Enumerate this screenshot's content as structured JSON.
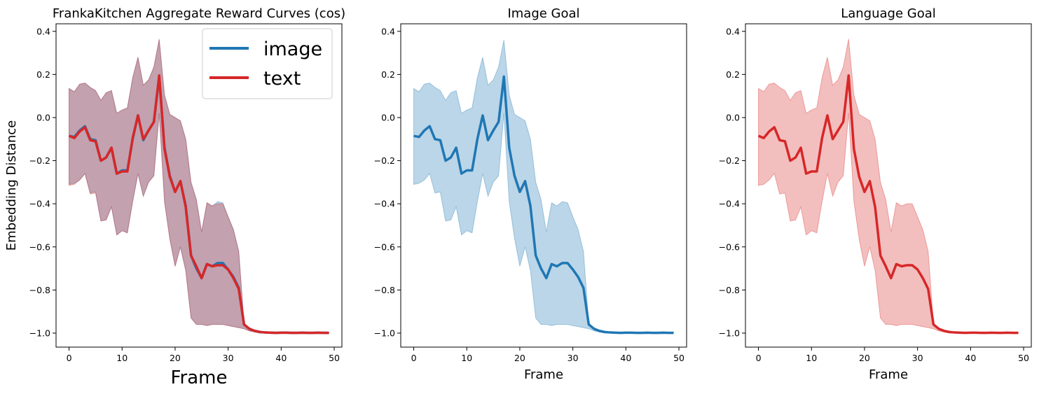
{
  "chart_data": [
    {
      "type": "line",
      "title": "FrankaKitchen Aggregate Reward Curves (cos)",
      "xlabel": "Frame",
      "ylabel": "Embedding Distance",
      "xlim": [
        -2.45,
        51.45
      ],
      "ylim": [
        -1.065,
        0.435
      ],
      "xticks": [
        0,
        10,
        20,
        30,
        40,
        50
      ],
      "yticks": [
        -1.0,
        -0.8,
        -0.6,
        -0.4,
        -0.2,
        0.0,
        0.2,
        0.4
      ],
      "xtick_labels": [
        "0",
        "10",
        "20",
        "30",
        "40",
        "50"
      ],
      "ytick_labels": [
        "−1.0",
        "−0.8",
        "−0.6",
        "−0.4",
        "−0.2",
        "0.0",
        "0.2",
        "0.4"
      ],
      "legend": {
        "position": "top-right",
        "entries": [
          {
            "label": "image",
            "color": "#1f77b4"
          },
          {
            "label": "text",
            "color": "#d62728"
          }
        ]
      },
      "x": [
        0,
        1,
        2,
        3,
        4,
        5,
        6,
        7,
        8,
        9,
        10,
        11,
        12,
        13,
        14,
        15,
        16,
        17,
        18,
        19,
        20,
        21,
        22,
        23,
        24,
        25,
        26,
        27,
        28,
        29,
        30,
        31,
        32,
        33,
        34,
        35,
        36,
        37,
        38,
        39,
        40,
        41,
        42,
        43,
        44,
        45,
        46,
        47,
        48,
        49
      ],
      "series": [
        {
          "name": "image",
          "color": "#1f77b4",
          "values": [
            -0.085,
            -0.09,
            -0.06,
            -0.04,
            -0.1,
            -0.105,
            -0.2,
            -0.185,
            -0.14,
            -0.26,
            -0.245,
            -0.245,
            -0.1,
            0.01,
            -0.105,
            -0.06,
            -0.02,
            0.19,
            -0.14,
            -0.27,
            -0.345,
            -0.295,
            -0.41,
            -0.64,
            -0.7,
            -0.745,
            -0.68,
            -0.69,
            -0.675,
            -0.675,
            -0.705,
            -0.74,
            -0.79,
            -0.96,
            -0.98,
            -0.99,
            -0.995,
            -0.997,
            -0.998,
            -0.999,
            -0.998,
            -0.998,
            -0.999,
            -0.999,
            -0.998,
            -0.999,
            -0.999,
            -0.998,
            -0.999,
            -0.999
          ],
          "upper": [
            0.135,
            0.12,
            0.155,
            0.16,
            0.14,
            0.125,
            0.08,
            0.115,
            0.125,
            0.02,
            0.035,
            0.045,
            0.185,
            0.28,
            0.15,
            0.175,
            0.235,
            0.36,
            0.105,
            0.015,
            0.0,
            -0.015,
            -0.1,
            -0.3,
            -0.38,
            -0.53,
            -0.395,
            -0.41,
            -0.39,
            -0.395,
            -0.46,
            -0.52,
            -0.62,
            -0.955,
            -0.975,
            -0.985,
            -0.99,
            -0.995,
            -0.996,
            -0.997,
            -0.996,
            -0.996,
            -0.997,
            -0.997,
            -0.996,
            -0.997,
            -0.997,
            -0.996,
            -0.997,
            -0.997
          ],
          "lower": [
            -0.31,
            -0.305,
            -0.29,
            -0.26,
            -0.35,
            -0.345,
            -0.48,
            -0.475,
            -0.415,
            -0.545,
            -0.525,
            -0.535,
            -0.39,
            -0.26,
            -0.365,
            -0.3,
            -0.27,
            0.02,
            -0.39,
            -0.56,
            -0.69,
            -0.6,
            -0.71,
            -0.93,
            -0.96,
            -0.96,
            -0.965,
            -0.96,
            -0.96,
            -0.96,
            -0.965,
            -0.97,
            -0.975,
            -0.98,
            -0.99,
            -0.995,
            -1.0,
            -1.0,
            -1.0,
            -1.0,
            -1.0,
            -1.0,
            -1.0,
            -1.0,
            -1.0,
            -1.0,
            -1.0,
            -1.0,
            -1.0,
            -1.0
          ]
        },
        {
          "name": "text",
          "color": "#d62728",
          "values": [
            -0.085,
            -0.095,
            -0.065,
            -0.045,
            -0.105,
            -0.11,
            -0.2,
            -0.185,
            -0.14,
            -0.26,
            -0.25,
            -0.25,
            -0.095,
            0.01,
            -0.1,
            -0.06,
            -0.02,
            0.195,
            -0.145,
            -0.275,
            -0.345,
            -0.295,
            -0.415,
            -0.64,
            -0.69,
            -0.745,
            -0.68,
            -0.69,
            -0.685,
            -0.685,
            -0.705,
            -0.745,
            -0.795,
            -0.96,
            -0.98,
            -0.99,
            -0.995,
            -0.997,
            -0.998,
            -0.999,
            -0.998,
            -0.998,
            -0.999,
            -0.999,
            -0.998,
            -0.999,
            -0.999,
            -0.998,
            -0.999,
            -0.999
          ],
          "upper": [
            0.135,
            0.12,
            0.155,
            0.16,
            0.14,
            0.125,
            0.08,
            0.115,
            0.125,
            0.02,
            0.035,
            0.045,
            0.185,
            0.28,
            0.15,
            0.175,
            0.235,
            0.365,
            0.105,
            0.015,
            0.0,
            -0.015,
            -0.1,
            -0.3,
            -0.38,
            -0.53,
            -0.395,
            -0.41,
            -0.4,
            -0.4,
            -0.46,
            -0.52,
            -0.62,
            -0.955,
            -0.975,
            -0.985,
            -0.99,
            -0.995,
            -0.996,
            -0.997,
            -0.996,
            -0.996,
            -0.997,
            -0.997,
            -0.996,
            -0.997,
            -0.997,
            -0.996,
            -0.997,
            -0.997
          ],
          "lower": [
            -0.315,
            -0.31,
            -0.29,
            -0.26,
            -0.355,
            -0.35,
            -0.48,
            -0.475,
            -0.415,
            -0.545,
            -0.525,
            -0.535,
            -0.39,
            -0.26,
            -0.365,
            -0.3,
            -0.27,
            0.02,
            -0.39,
            -0.565,
            -0.69,
            -0.6,
            -0.71,
            -0.93,
            -0.96,
            -0.96,
            -0.965,
            -0.96,
            -0.96,
            -0.96,
            -0.965,
            -0.97,
            -0.975,
            -0.98,
            -0.99,
            -0.995,
            -1.0,
            -1.0,
            -1.0,
            -1.0,
            -1.0,
            -1.0,
            -1.0,
            -1.0,
            -1.0,
            -1.0,
            -1.0,
            -1.0,
            -1.0,
            -1.0
          ]
        }
      ]
    },
    {
      "type": "line",
      "title": "Image Goal",
      "xlabel": "Frame",
      "ylabel": "",
      "xlim": [
        -2.45,
        51.45
      ],
      "ylim": [
        -1.065,
        0.435
      ],
      "xticks": [
        0,
        10,
        20,
        30,
        40,
        50
      ],
      "yticks": [
        -1.0,
        -0.8,
        -0.6,
        -0.4,
        -0.2,
        0.0,
        0.2,
        0.4
      ],
      "xtick_labels": [
        "0",
        "10",
        "20",
        "30",
        "40",
        "50"
      ],
      "ytick_labels": [
        "−1.0",
        "−0.8",
        "−0.6",
        "−0.4",
        "−0.2",
        "0.0",
        "0.2",
        "0.4"
      ],
      "series_ref": "image",
      "color": "#1f77b4"
    },
    {
      "type": "line",
      "title": "Language Goal",
      "xlabel": "Frame",
      "ylabel": "",
      "xlim": [
        -2.45,
        51.45
      ],
      "ylim": [
        -1.065,
        0.435
      ],
      "xticks": [
        0,
        10,
        20,
        30,
        40,
        50
      ],
      "yticks": [
        -1.0,
        -0.8,
        -0.6,
        -0.4,
        -0.2,
        0.0,
        0.2,
        0.4
      ],
      "xtick_labels": [
        "0",
        "10",
        "20",
        "30",
        "40",
        "50"
      ],
      "ytick_labels": [
        "−1.0",
        "−0.8",
        "−0.6",
        "−0.4",
        "−0.2",
        "0.0",
        "0.2",
        "0.4"
      ],
      "series_ref": "text",
      "color": "#d62728"
    }
  ]
}
